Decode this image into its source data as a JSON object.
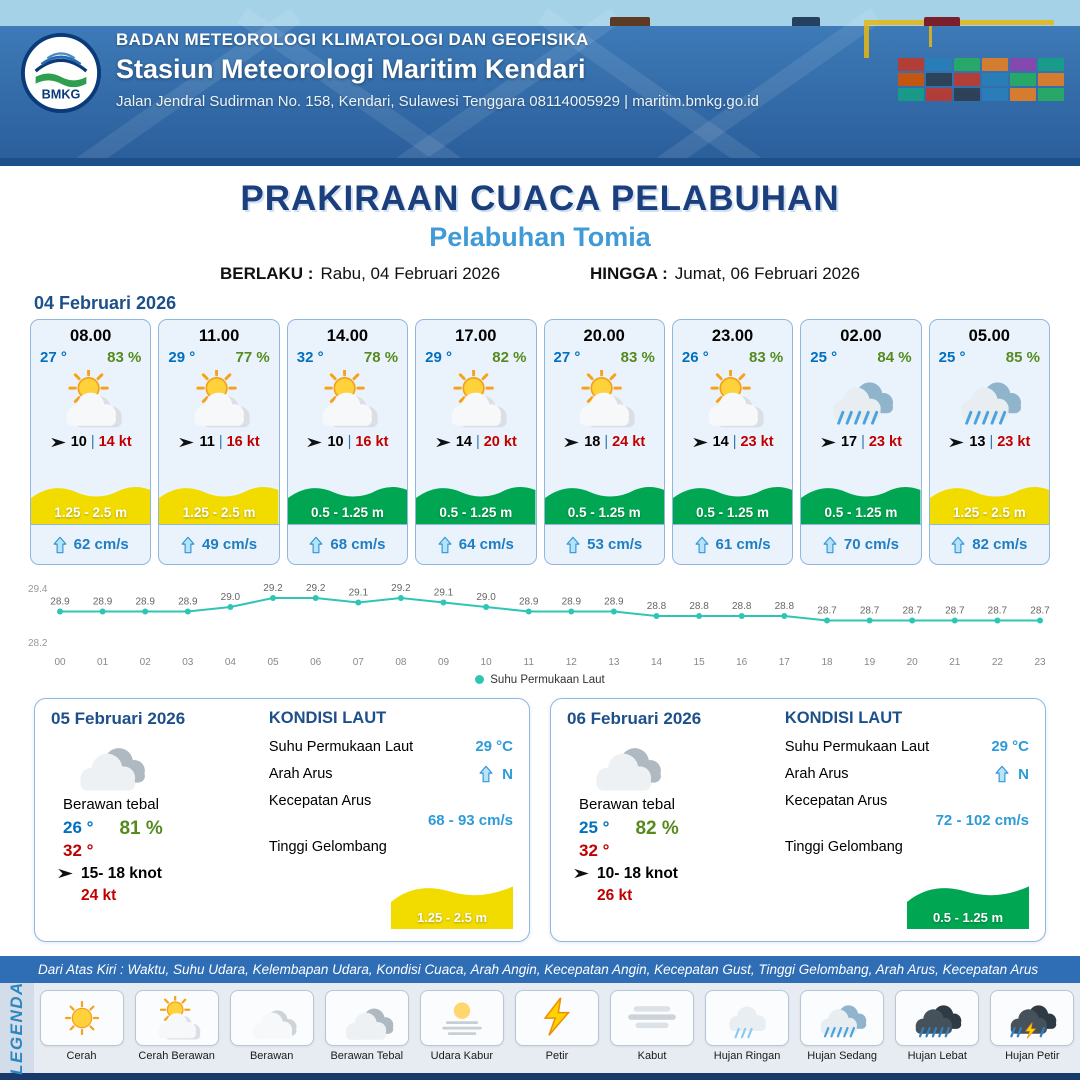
{
  "header": {
    "agency": "BADAN METEOROLOGI KLIMATOLOGI DAN GEOFISIKA",
    "station": "Stasiun Meteorologi Maritim Kendari",
    "address": "Jalan Jendral Sudirman No. 158, Kendari, Sulawesi Tenggara  08114005929 | maritim.bmkg.go.id",
    "logo_text": "BMKG"
  },
  "title": {
    "main": "PRAKIRAAN CUACA PELABUHAN",
    "port": "Pelabuhan Tomia",
    "berlaku_label": "BERLAKU :",
    "berlaku_value": "Rabu, 04 Februari 2026",
    "hingga_label": "HINGGA :",
    "hingga_value": "Jumat, 06 Februari 2026"
  },
  "forecast": {
    "date": "04 Februari 2026",
    "wind_separator": "|",
    "cards": [
      {
        "time": "08.00",
        "temp": "27 °",
        "humidity": "83 %",
        "icon": "cerah-berawan",
        "wind_speed": "10",
        "wind_gust": "14 kt",
        "wave": "1.25 - 2.5 m",
        "wave_color": "#f2dc00",
        "current": "62 cm/s"
      },
      {
        "time": "11.00",
        "temp": "29 °",
        "humidity": "77 %",
        "icon": "cerah-berawan",
        "wind_speed": "11",
        "wind_gust": "16 kt",
        "wave": "1.25 - 2.5 m",
        "wave_color": "#f2dc00",
        "current": "49 cm/s"
      },
      {
        "time": "14.00",
        "temp": "32 °",
        "humidity": "78 %",
        "icon": "cerah-berawan",
        "wind_speed": "10",
        "wind_gust": "16 kt",
        "wave": "0.5 - 1.25 m",
        "wave_color": "#00a651",
        "current": "68 cm/s"
      },
      {
        "time": "17.00",
        "temp": "29 °",
        "humidity": "82 %",
        "icon": "cerah-berawan",
        "wind_speed": "14",
        "wind_gust": "20 kt",
        "wave": "0.5 - 1.25 m",
        "wave_color": "#00a651",
        "current": "64 cm/s"
      },
      {
        "time": "20.00",
        "temp": "27 °",
        "humidity": "83 %",
        "icon": "cerah-berawan",
        "wind_speed": "18",
        "wind_gust": "24 kt",
        "wave": "0.5 - 1.25 m",
        "wave_color": "#00a651",
        "current": "53 cm/s"
      },
      {
        "time": "23.00",
        "temp": "26 °",
        "humidity": "83 %",
        "icon": "cerah-berawan",
        "wind_speed": "14",
        "wind_gust": "23 kt",
        "wave": "0.5 - 1.25 m",
        "wave_color": "#00a651",
        "current": "61 cm/s"
      },
      {
        "time": "02.00",
        "temp": "25 °",
        "humidity": "84 %",
        "icon": "hujan-sedang",
        "wind_speed": "17",
        "wind_gust": "23 kt",
        "wave": "0.5 - 1.25 m",
        "wave_color": "#00a651",
        "current": "70 cm/s"
      },
      {
        "time": "05.00",
        "temp": "25 °",
        "humidity": "85 %",
        "icon": "hujan-sedang",
        "wind_speed": "13",
        "wind_gust": "23 kt",
        "wave": "1.25 - 2.5 m",
        "wave_color": "#f2dc00",
        "current": "82 cm/s"
      }
    ]
  },
  "chart_data": {
    "type": "line",
    "x": [
      "00",
      "01",
      "02",
      "03",
      "04",
      "05",
      "06",
      "07",
      "08",
      "09",
      "10",
      "11",
      "12",
      "13",
      "14",
      "15",
      "16",
      "17",
      "18",
      "19",
      "20",
      "21",
      "22",
      "23"
    ],
    "series": [
      {
        "name": "Suhu Permukaan Laut",
        "values": [
          28.9,
          28.9,
          28.9,
          28.9,
          29.0,
          29.2,
          29.2,
          29.1,
          29.2,
          29.1,
          29.0,
          28.9,
          28.9,
          28.9,
          28.8,
          28.8,
          28.8,
          28.8,
          28.7,
          28.7,
          28.7,
          28.7,
          28.7,
          28.7
        ]
      }
    ],
    "ylim": [
      28.2,
      29.4
    ],
    "line_color": "#2fc5b5",
    "legend": "Suhu Permukaan Laut",
    "title": "",
    "xlabel": "",
    "ylabel": ""
  },
  "daily": [
    {
      "date": "05 Februari 2026",
      "icon": "berawan-tebal",
      "condition": "Berawan tebal",
      "temp_min": "26 °",
      "temp_max": "32 °",
      "humidity": "81 %",
      "wind": "15- 18 knot",
      "gust": "24 kt",
      "sea_title": "KONDISI LAUT",
      "sst_label": "Suhu Permukaan Laut",
      "sst": "29 °C",
      "current_dir_label": "Arah Arus",
      "current_dir": "N",
      "current_speed_label": "Kecepatan Arus",
      "current_speed": "68 - 93 cm/s",
      "wave_label": "Tinggi Gelombang",
      "wave": "1.25 - 2.5 m",
      "wave_color": "#f2dc00"
    },
    {
      "date": "06 Februari 2026",
      "icon": "berawan-tebal",
      "condition": "Berawan tebal",
      "temp_min": "25 °",
      "temp_max": "32 °",
      "humidity": "82 %",
      "wind": "10- 18 knot",
      "gust": "26 kt",
      "sea_title": "KONDISI LAUT",
      "sst_label": "Suhu Permukaan Laut",
      "sst": "29 °C",
      "current_dir_label": "Arah Arus",
      "current_dir": "N",
      "current_speed_label": "Kecepatan Arus",
      "current_speed": "72 - 102 cm/s",
      "wave_label": "Tinggi Gelombang",
      "wave": "0.5 - 1.25 m",
      "wave_color": "#00a651"
    }
  ],
  "legend": {
    "strip": "Dari Atas Kiri : Waktu, Suhu Udara, Kelembapan Udara, Kondisi Cuaca, Arah Angin, Kecepatan Angin, Kecepatan Gust, Tinggi Gelombang, Arah Arus, Kecepatan Arus",
    "title": "LEGENDA",
    "items": [
      {
        "label": "Cerah",
        "icon": "cerah"
      },
      {
        "label": "Cerah Berawan",
        "icon": "cerah-berawan"
      },
      {
        "label": "Berawan",
        "icon": "berawan"
      },
      {
        "label": "Berawan Tebal",
        "icon": "berawan-tebal"
      },
      {
        "label": "Udara Kabur",
        "icon": "udara-kabur"
      },
      {
        "label": "Petir",
        "icon": "petir"
      },
      {
        "label": "Kabut",
        "icon": "kabut"
      },
      {
        "label": "Hujan Ringan",
        "icon": "hujan-ringan"
      },
      {
        "label": "Hujan Sedang",
        "icon": "hujan-sedang"
      },
      {
        "label": "Hujan Lebat",
        "icon": "hujan-lebat"
      },
      {
        "label": "Hujan Petir",
        "icon": "hujan-petir"
      }
    ]
  }
}
